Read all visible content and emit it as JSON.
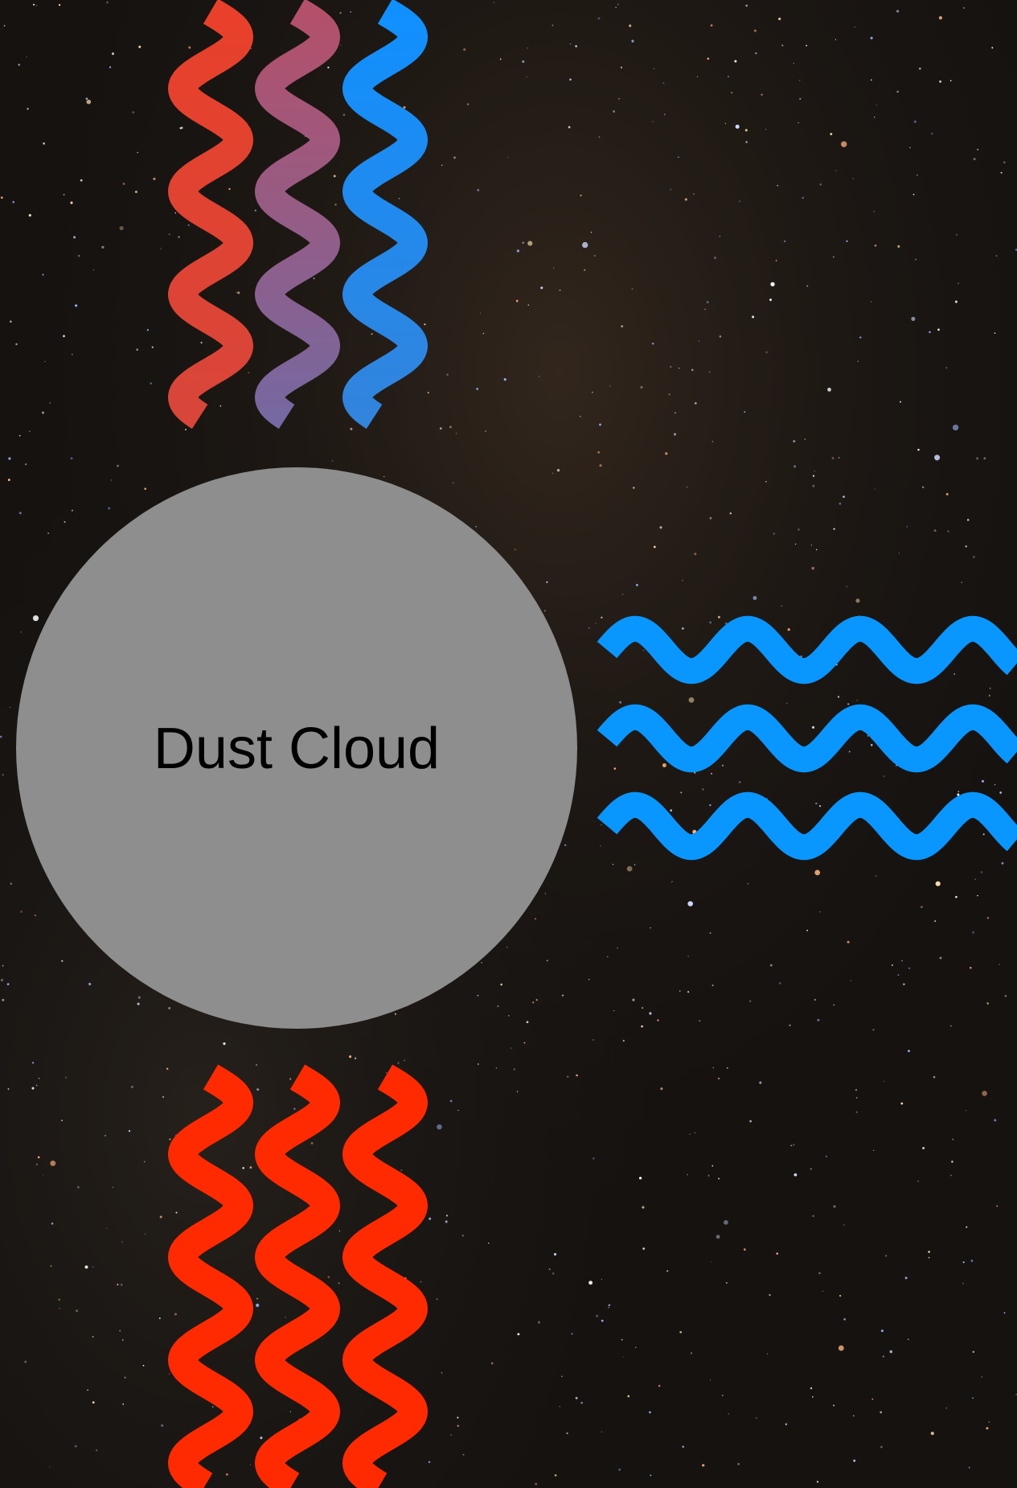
{
  "nodes": [
    {
      "label": "Dust Cloud"
    }
  ]
}
